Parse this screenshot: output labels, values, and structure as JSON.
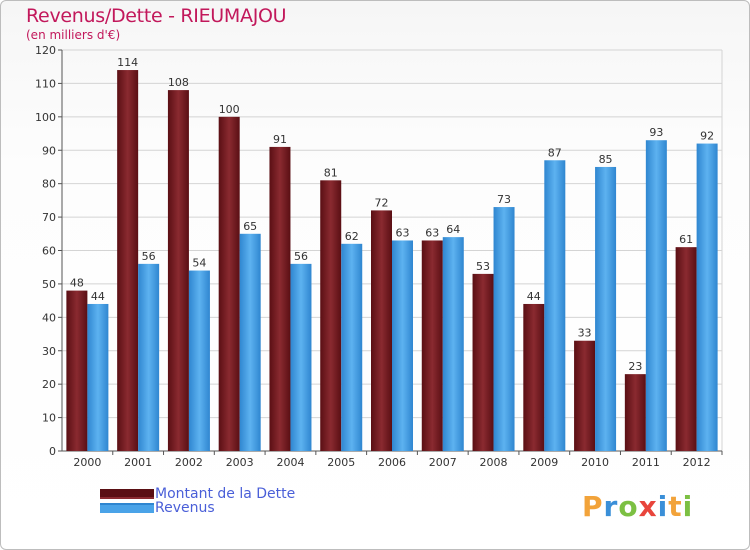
{
  "header": {
    "title": "Revenus/Dette - RIEUMAJOU",
    "subtitle": "(en milliers d'€)"
  },
  "chart_data": {
    "type": "bar",
    "title": "Revenus/Dette - RIEUMAJOU",
    "subtitle": "(en milliers d'€)",
    "categories": [
      "2000",
      "2001",
      "2002",
      "2003",
      "2004",
      "2005",
      "2006",
      "2007",
      "2008",
      "2009",
      "2010",
      "2011",
      "2012"
    ],
    "series": [
      {
        "name": "Montant de la Dette",
        "color": "#7a1f24",
        "values": [
          48,
          114,
          108,
          100,
          91,
          81,
          72,
          63,
          53,
          44,
          33,
          23,
          61
        ]
      },
      {
        "name": "Revenus",
        "color": "#4aa3e8",
        "values": [
          44,
          56,
          54,
          65,
          56,
          62,
          63,
          64,
          73,
          87,
          85,
          93,
          92
        ]
      }
    ],
    "ylim": [
      0,
      120
    ],
    "yticks": [
      0,
      10,
      20,
      30,
      40,
      50,
      60,
      70,
      80,
      90,
      100,
      110,
      120
    ],
    "grid": true,
    "legend": "bottom-left"
  },
  "legend": {
    "items": [
      {
        "label": "Montant de la Dette",
        "color": "#7a1f24"
      },
      {
        "label": "Revenus",
        "color": "#4aa3e8"
      }
    ]
  },
  "brand": {
    "letters": [
      "P",
      "r",
      "o",
      "x",
      "i",
      "t",
      "i"
    ],
    "colors": [
      "#f2a33a",
      "#3a8fd8",
      "#7cc043",
      "#e8453c",
      "#3a8fd8",
      "#f2a33a",
      "#7cc043"
    ]
  }
}
